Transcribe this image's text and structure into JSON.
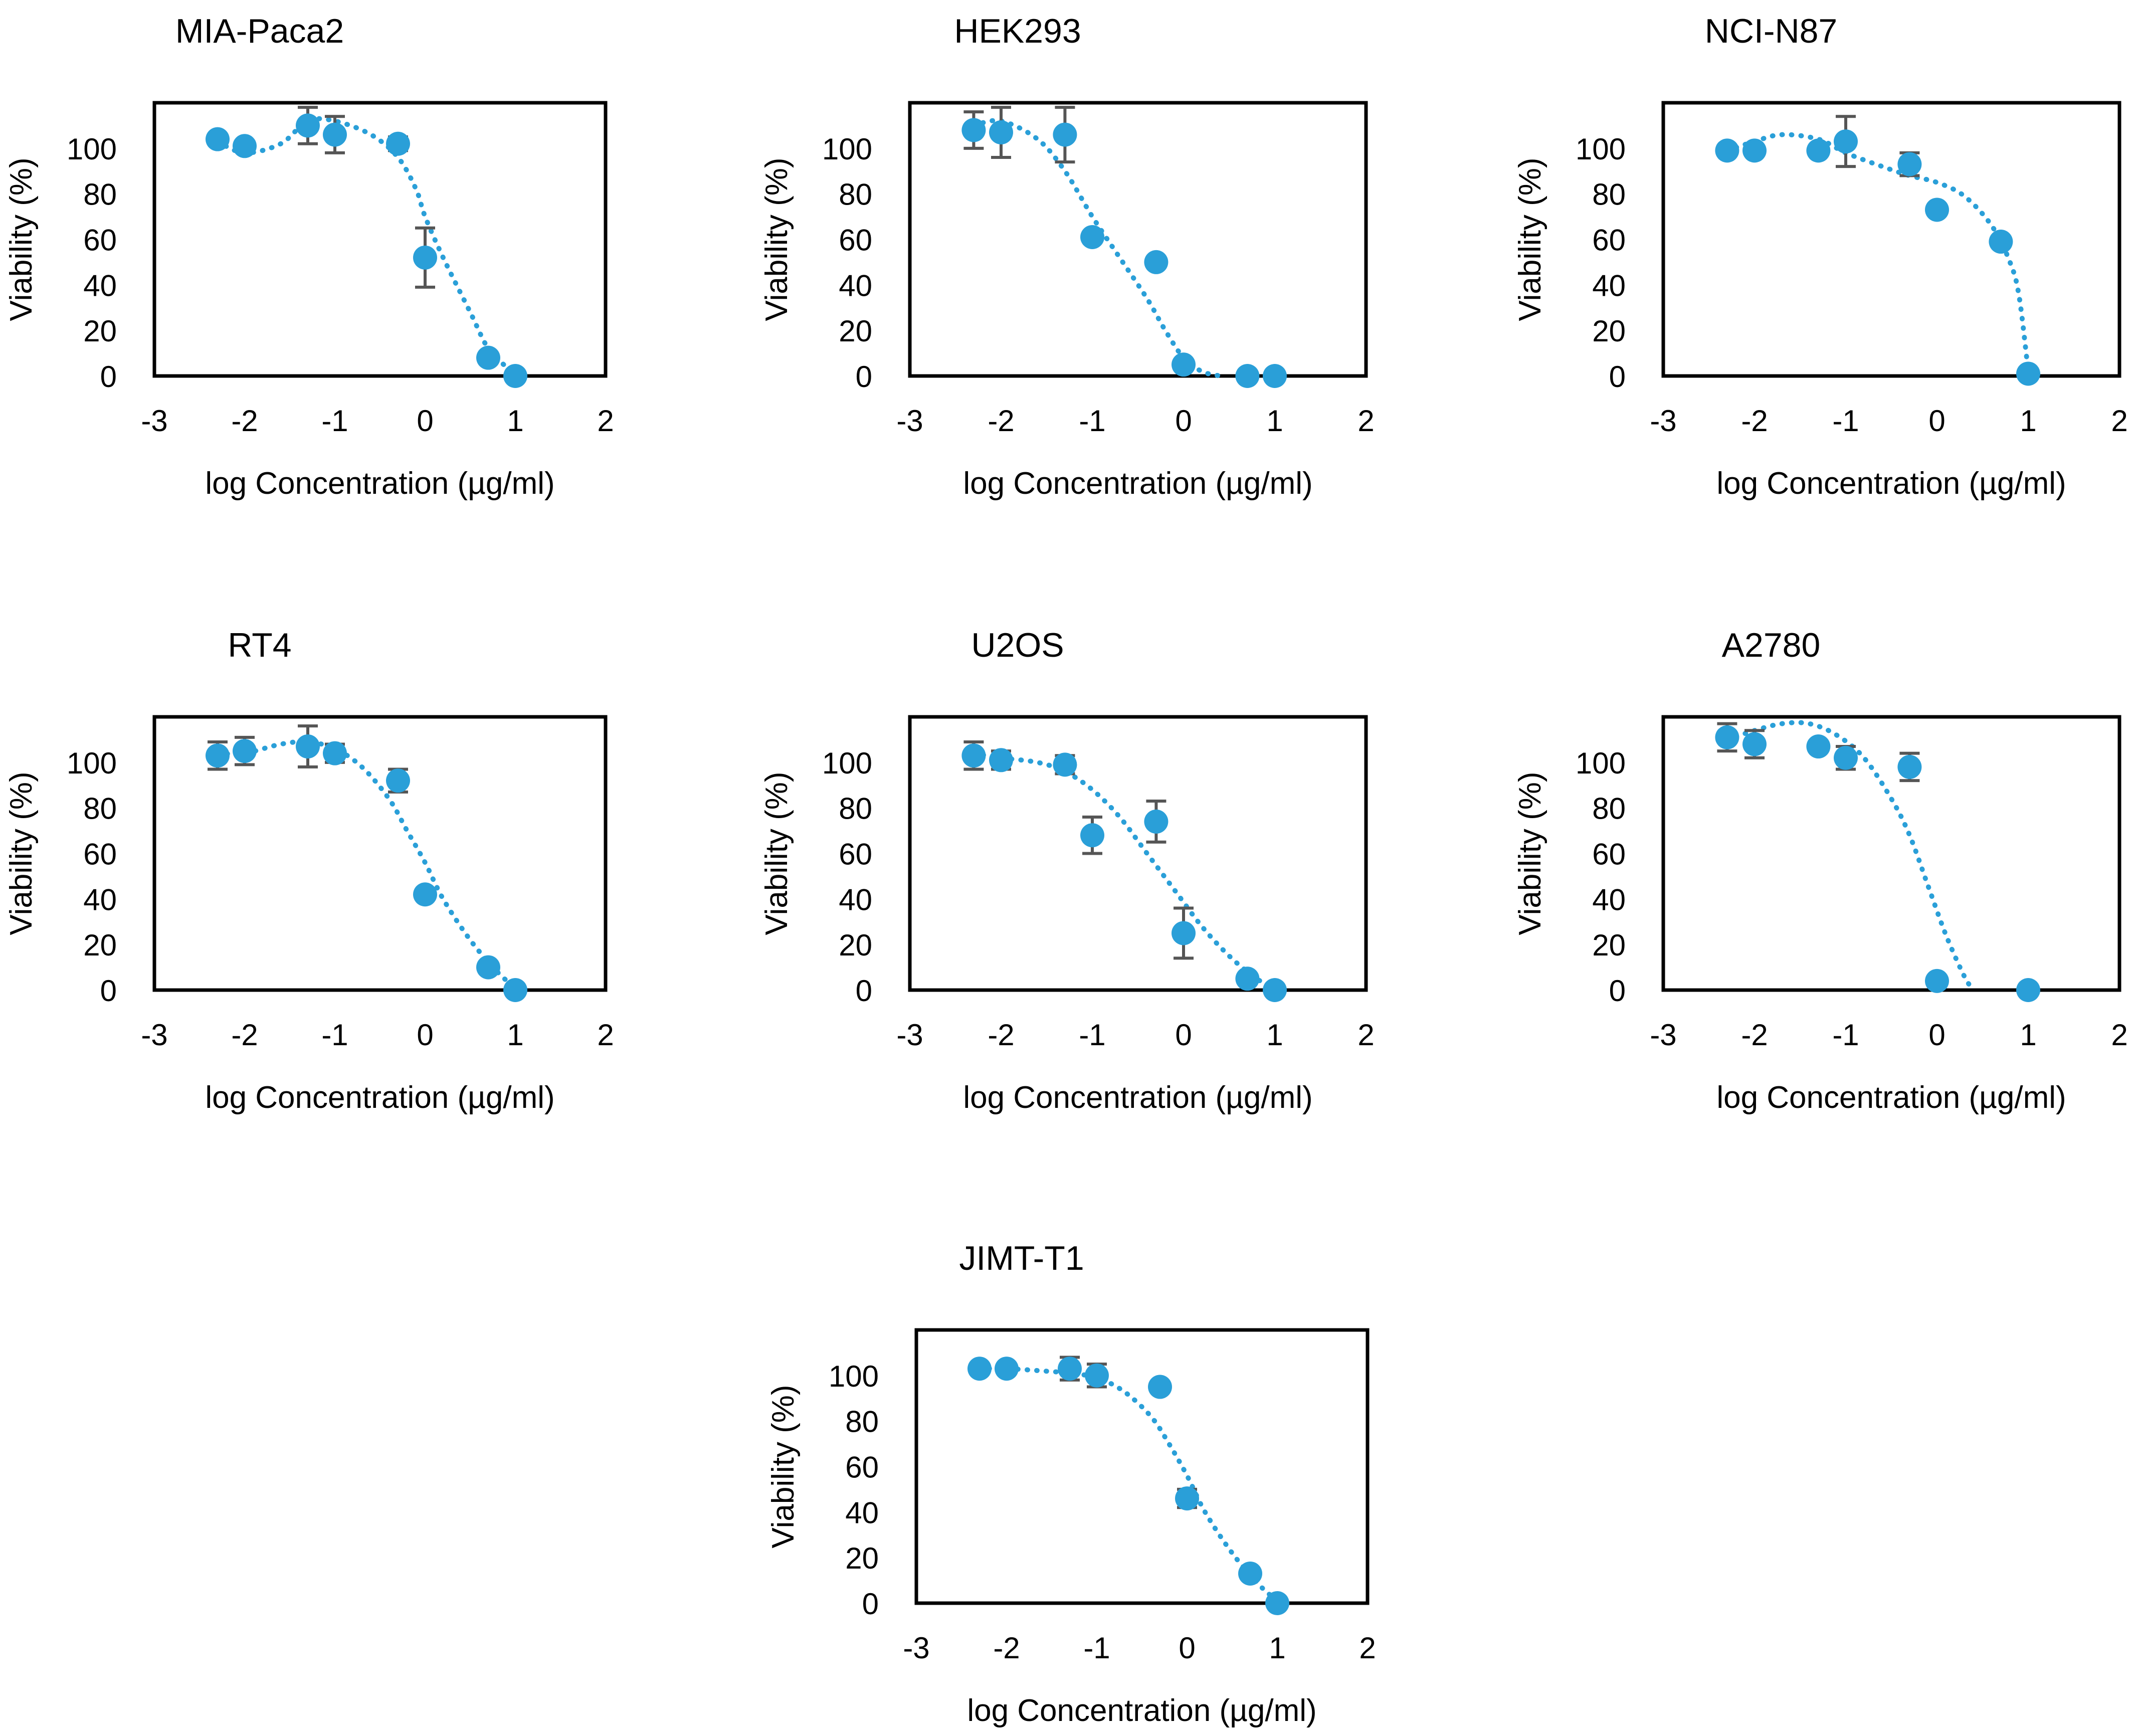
{
  "figure_type": "dose-response panel grid",
  "colors": {
    "marker": "#2a9fd8",
    "fit_line": "#2a9fd8",
    "error_bar": "#555555",
    "axis": "#000000",
    "background": "#ffffff"
  },
  "chart_data": [
    {
      "type": "scatter",
      "title": "MIA-Paca2",
      "xlabel": "log Concentration (µg/ml)",
      "ylabel": "Viability (%)",
      "xlim": [
        -3,
        2
      ],
      "ylim": [
        0,
        120
      ],
      "xticks": [
        "-3",
        "-2",
        "-1",
        "0",
        "1",
        "2"
      ],
      "yticks": [
        "0",
        "20",
        "40",
        "60",
        "80",
        "100"
      ],
      "x": [
        -2.3,
        -2.0,
        -1.3,
        -1.0,
        -0.3,
        0.0,
        0.7,
        1.0
      ],
      "y": [
        104,
        101,
        110,
        106,
        102,
        52,
        8,
        0
      ],
      "err": [
        0,
        2,
        8,
        8,
        3,
        13,
        0,
        0
      ],
      "fit": {
        "x": [
          -2.3,
          -2.0,
          -1.6,
          -1.3,
          -1.0,
          -0.6,
          -0.3,
          -0.1,
          0.0,
          0.2,
          0.5,
          0.7,
          0.9,
          1.0
        ],
        "y": [
          103,
          98,
          102,
          112,
          112,
          106,
          96,
          82,
          70,
          52,
          28,
          12,
          4,
          1
        ]
      },
      "grid": false,
      "legend": "none"
    },
    {
      "type": "scatter",
      "title": "HEK293",
      "xlabel": "log Concentration (µg/ml)",
      "ylabel": "Viability (%)",
      "xlim": [
        -3,
        2
      ],
      "ylim": [
        0,
        120
      ],
      "xticks": [
        "-3",
        "-2",
        "-1",
        "0",
        "1",
        "2"
      ],
      "yticks": [
        "0",
        "20",
        "40",
        "60",
        "80",
        "100"
      ],
      "x": [
        -2.3,
        -2.0,
        -1.3,
        -1.0,
        -0.3,
        0.0,
        0.7,
        1.0
      ],
      "y": [
        108,
        107,
        106,
        61,
        50,
        5,
        0,
        0
      ],
      "err": [
        8,
        11,
        12,
        0,
        0,
        0,
        0,
        0
      ],
      "fit": {
        "x": [
          -2.3,
          -2.0,
          -1.6,
          -1.3,
          -1.0,
          -0.7,
          -0.4,
          -0.2,
          0.0,
          0.2,
          0.4
        ],
        "y": [
          110,
          112,
          104,
          90,
          70,
          52,
          34,
          20,
          8,
          2,
          0
        ]
      },
      "grid": false,
      "legend": "none"
    },
    {
      "type": "scatter",
      "title": "NCI-N87",
      "xlabel": "log Concentration (µg/ml)",
      "ylabel": "Viability (%)",
      "xlim": [
        -3,
        2
      ],
      "ylim": [
        0,
        120
      ],
      "xticks": [
        "-3",
        "-2",
        "-1",
        "0",
        "1",
        "2"
      ],
      "yticks": [
        "0",
        "20",
        "40",
        "60",
        "80",
        "100"
      ],
      "x": [
        -2.3,
        -2.0,
        -1.3,
        -1.0,
        -0.3,
        0.0,
        0.7,
        1.0
      ],
      "y": [
        99,
        99,
        99,
        103,
        93,
        73,
        59,
        1
      ],
      "err": [
        0,
        0,
        0,
        11,
        5,
        0,
        0,
        0
      ],
      "fit": {
        "x": [
          -2.3,
          -2.0,
          -1.7,
          -1.3,
          -1.0,
          -0.6,
          -0.3,
          0.0,
          0.3,
          0.6,
          0.8,
          0.9,
          1.0
        ],
        "y": [
          99,
          103,
          106,
          104,
          98,
          92,
          88,
          85,
          79,
          66,
          50,
          35,
          2
        ]
      },
      "grid": false,
      "legend": "none"
    },
    {
      "type": "scatter",
      "title": "RT4",
      "xlabel": "log Concentration (µg/ml)",
      "ylabel": "Viability (%)",
      "xlim": [
        -3,
        2
      ],
      "ylim": [
        0,
        120
      ],
      "xticks": [
        "-3",
        "-2",
        "-1",
        "0",
        "1",
        "2"
      ],
      "yticks": [
        "0",
        "20",
        "40",
        "60",
        "80",
        "100"
      ],
      "x": [
        -2.3,
        -2.0,
        -1.3,
        -1.0,
        -0.3,
        0.0,
        0.7,
        1.0
      ],
      "y": [
        103,
        105,
        107,
        104,
        92,
        42,
        10,
        0
      ],
      "err": [
        6,
        6,
        9,
        4,
        5,
        0,
        0,
        0
      ],
      "fit": {
        "x": [
          -2.3,
          -2.0,
          -1.6,
          -1.3,
          -1.0,
          -0.7,
          -0.4,
          -0.2,
          0.0,
          0.2,
          0.5,
          0.8,
          1.0
        ],
        "y": [
          104,
          104,
          108,
          109,
          106,
          98,
          84,
          70,
          56,
          40,
          22,
          8,
          1
        ]
      },
      "grid": false,
      "legend": "none"
    },
    {
      "type": "scatter",
      "title": "U2OS",
      "xlabel": "log Concentration (µg/ml)",
      "ylabel": "Viability (%)",
      "xlim": [
        -3,
        2
      ],
      "ylim": [
        0,
        120
      ],
      "xticks": [
        "-3",
        "-2",
        "-1",
        "0",
        "1",
        "2"
      ],
      "yticks": [
        "0",
        "20",
        "40",
        "60",
        "80",
        "100"
      ],
      "x": [
        -2.3,
        -2.0,
        -1.3,
        -1.0,
        -0.3,
        0.0,
        0.7,
        1.0
      ],
      "y": [
        103,
        101,
        99,
        68,
        74,
        25,
        5,
        0
      ],
      "err": [
        6,
        4,
        4,
        8,
        9,
        11,
        0,
        0
      ],
      "fit": {
        "x": [
          -2.3,
          -2.0,
          -1.6,
          -1.3,
          -1.0,
          -0.7,
          -0.4,
          -0.1,
          0.2,
          0.5,
          0.8,
          1.0
        ],
        "y": [
          104,
          102,
          100,
          96,
          88,
          76,
          60,
          44,
          28,
          15,
          5,
          1
        ]
      },
      "grid": false,
      "legend": "none"
    },
    {
      "type": "scatter",
      "title": "A2780",
      "xlabel": "log Concentration (µg/ml)",
      "ylabel": "Viability (%)",
      "xlim": [
        -3,
        2
      ],
      "ylim": [
        0,
        120
      ],
      "xticks": [
        "-3",
        "-2",
        "-1",
        "0",
        "1",
        "2"
      ],
      "yticks": [
        "0",
        "20",
        "40",
        "60",
        "80",
        "100"
      ],
      "x": [
        -2.3,
        -2.0,
        -1.3,
        -1.0,
        -0.3,
        0.0,
        1.0
      ],
      "y": [
        111,
        108,
        107,
        102,
        98,
        4,
        0
      ],
      "err": [
        6,
        6,
        0,
        5,
        6,
        0,
        0
      ],
      "fit": {
        "x": [
          -2.3,
          -2.0,
          -1.7,
          -1.4,
          -1.1,
          -0.8,
          -0.5,
          -0.3,
          -0.1,
          0.1,
          0.3,
          0.4
        ],
        "y": [
          110,
          114,
          117,
          117,
          112,
          102,
          84,
          68,
          46,
          24,
          6,
          0
        ]
      },
      "grid": false,
      "legend": "none"
    },
    {
      "type": "scatter",
      "title": "JIMT-T1",
      "xlabel": "log Concentration (µg/ml)",
      "ylabel": "Viability (%)",
      "xlim": [
        -3,
        2
      ],
      "ylim": [
        0,
        120
      ],
      "xticks": [
        "-3",
        "-2",
        "-1",
        "0",
        "1",
        "2"
      ],
      "yticks": [
        "0",
        "20",
        "40",
        "60",
        "80",
        "100"
      ],
      "x": [
        -2.3,
        -2.0,
        -1.3,
        -1.0,
        -0.3,
        0.0,
        0.7,
        1.0
      ],
      "y": [
        103,
        103,
        103,
        100,
        95,
        46,
        13,
        0
      ],
      "err": [
        0,
        0,
        5,
        5,
        0,
        4,
        0,
        0
      ],
      "fit": {
        "x": [
          -2.3,
          -2.0,
          -1.6,
          -1.3,
          -1.0,
          -0.7,
          -0.4,
          -0.2,
          0.0,
          0.2,
          0.5,
          0.8,
          1.0
        ],
        "y": [
          103,
          103,
          102,
          101,
          99,
          93,
          82,
          70,
          56,
          40,
          22,
          8,
          1
        ]
      },
      "grid": false,
      "legend": "none"
    }
  ]
}
